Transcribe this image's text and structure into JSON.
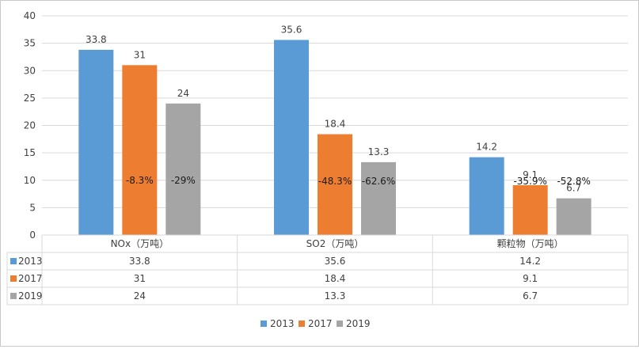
{
  "chart_data": {
    "type": "bar",
    "categories": [
      "NOx（万吨）",
      "SO2（万吨）",
      "颗粒物（万吨）"
    ],
    "series": [
      {
        "name": "2013",
        "values": [
          33.8,
          35.6,
          14.2
        ],
        "color": "#5b9bd5",
        "value_labels": [
          "33.8",
          "35.6",
          "14.2"
        ]
      },
      {
        "name": "2017",
        "values": [
          31,
          18.4,
          9.1
        ],
        "color": "#ed7d31",
        "value_labels": [
          "31",
          "18.4",
          "9.1"
        ]
      },
      {
        "name": "2019",
        "values": [
          24,
          13.3,
          6.7
        ],
        "color": "#a5a5a5",
        "value_labels": [
          "24",
          "13.3",
          "6.7"
        ]
      }
    ],
    "in_bar_labels": {
      "2017": [
        "-8.3%",
        "-48.3%",
        "-35.9%"
      ],
      "2019": [
        "-29%",
        "-62.6%",
        "-52.8%"
      ]
    },
    "ylim": [
      0,
      40
    ],
    "yticks": [
      "0",
      "5",
      "10",
      "15",
      "20",
      "25",
      "30",
      "35",
      "40"
    ],
    "grid": true,
    "data_table": true,
    "legend_position": "bottom"
  }
}
